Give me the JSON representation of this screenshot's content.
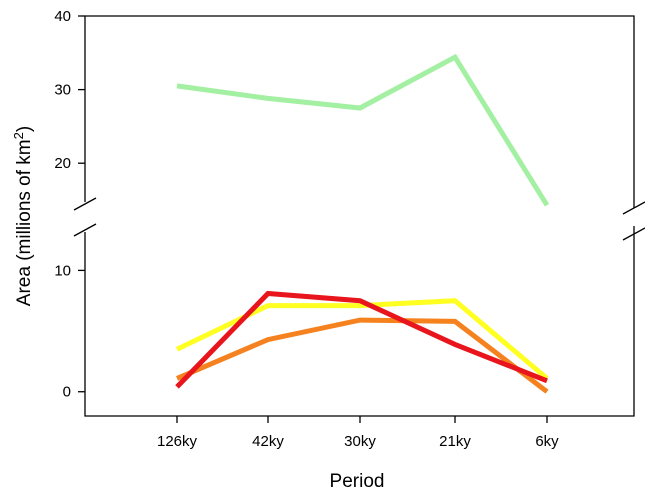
{
  "chart_data": {
    "type": "line",
    "xlabel": "Period",
    "ylabel": {
      "prefix": "Area (millions of km",
      "superscript": "2",
      "suffix": ")"
    },
    "categories": [
      "126ky",
      "42ky",
      "30ky",
      "21ky",
      "6ky"
    ],
    "y_axis_broken": true,
    "upper_panel": {
      "ylim": [
        15,
        40
      ],
      "ticks": [
        "20",
        "30",
        "40"
      ],
      "series": [
        {
          "color": "#a3f0a3",
          "values": [
            30.5,
            28.8,
            27.5,
            34.4,
            14.3
          ]
        }
      ]
    },
    "lower_panel": {
      "ylim": [
        -2,
        13
      ],
      "ticks": [
        "0",
        "10"
      ],
      "series": [
        {
          "color": "#ffff22",
          "values": [
            3.5,
            7.1,
            7.1,
            7.5,
            1.1
          ]
        },
        {
          "color": "#f5821f",
          "values": [
            1.1,
            4.3,
            5.9,
            5.8,
            0.0
          ]
        },
        {
          "color": "#e8161c",
          "values": [
            0.4,
            8.1,
            7.5,
            3.9,
            0.9
          ]
        }
      ]
    }
  }
}
